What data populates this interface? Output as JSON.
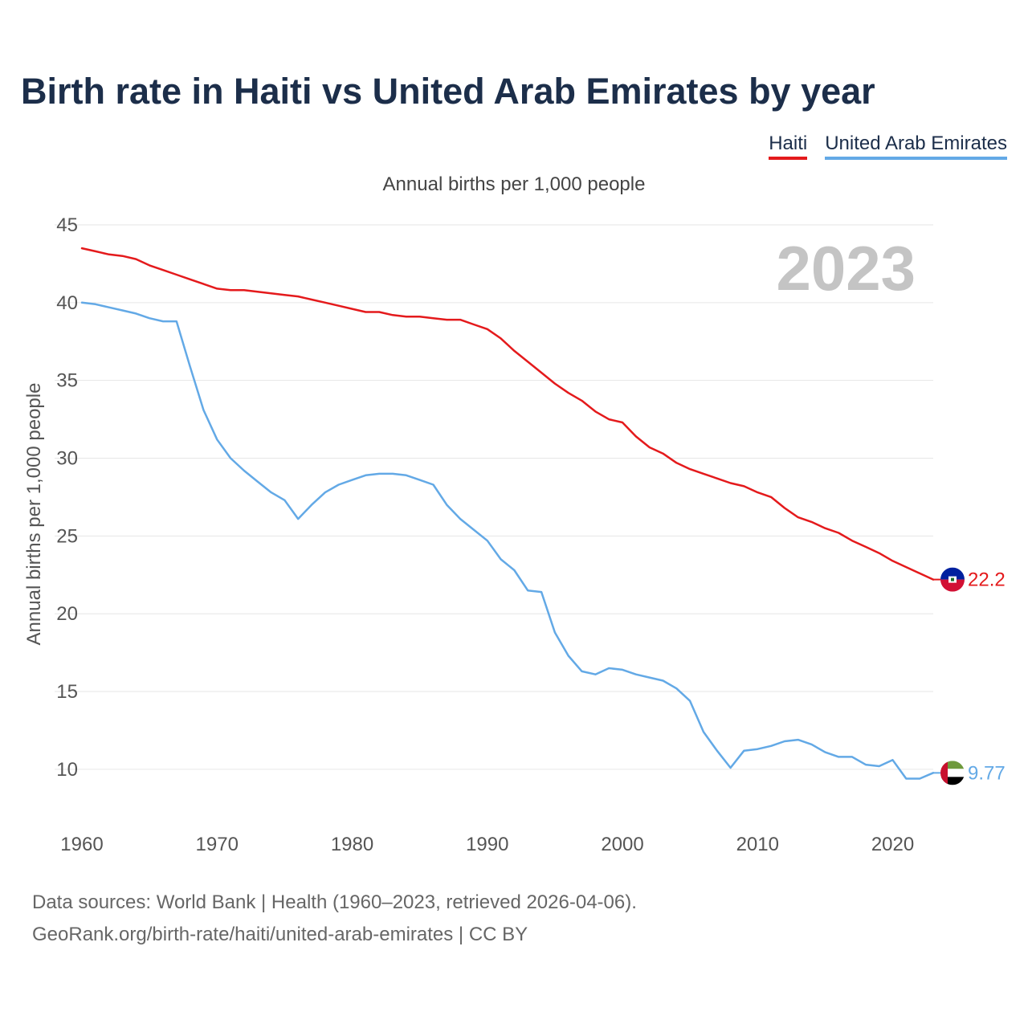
{
  "title": "Birth rate in Haiti vs United Arab Emirates by year",
  "subtitle": "Annual births per 1,000 people",
  "legend": {
    "haiti": "Haiti",
    "uae": "United Arab Emirates"
  },
  "year_label": "2023",
  "footer": {
    "line1": "Data sources: World Bank | Health (1960–2023, retrieved 2026-04-06).",
    "line2": "GeoRank.org/birth-rate/haiti/united-arab-emirates | CC BY"
  },
  "colors": {
    "haiti": "#e41a1c",
    "uae": "#63a9e6",
    "title": "#1c2e4a",
    "grid": "#e6e6e6",
    "year": "#c4c4c4"
  },
  "chart_data": {
    "type": "line",
    "title": "Birth rate in Haiti vs United Arab Emirates by year",
    "xlabel": "",
    "ylabel": "Annual births per 1,000 people",
    "xlim": [
      1960,
      2023
    ],
    "ylim": [
      7,
      45
    ],
    "x_ticks": [
      "1960",
      "1970",
      "1980",
      "1990",
      "2000",
      "2010",
      "2020"
    ],
    "y_ticks": [
      "10",
      "15",
      "20",
      "25",
      "30",
      "35",
      "40",
      "45"
    ],
    "x": [
      1960,
      1961,
      1962,
      1963,
      1964,
      1965,
      1966,
      1967,
      1968,
      1969,
      1970,
      1971,
      1972,
      1973,
      1974,
      1975,
      1976,
      1977,
      1978,
      1979,
      1980,
      1981,
      1982,
      1983,
      1984,
      1985,
      1986,
      1987,
      1988,
      1989,
      1990,
      1991,
      1992,
      1993,
      1994,
      1995,
      1996,
      1997,
      1998,
      1999,
      2000,
      2001,
      2002,
      2003,
      2004,
      2005,
      2006,
      2007,
      2008,
      2009,
      2010,
      2011,
      2012,
      2013,
      2014,
      2015,
      2016,
      2017,
      2018,
      2019,
      2020,
      2021,
      2022,
      2023
    ],
    "series": [
      {
        "name": "Haiti",
        "end_label": "22.2",
        "values": [
          43.5,
          43.3,
          43.1,
          43.0,
          42.8,
          42.4,
          42.1,
          41.8,
          41.5,
          41.2,
          40.9,
          40.8,
          40.8,
          40.7,
          40.6,
          40.5,
          40.4,
          40.2,
          40.0,
          39.8,
          39.6,
          39.4,
          39.4,
          39.2,
          39.1,
          39.1,
          39.0,
          38.9,
          38.9,
          38.6,
          38.3,
          37.7,
          36.9,
          36.2,
          35.5,
          34.8,
          34.2,
          33.7,
          33.0,
          32.5,
          32.3,
          31.4,
          30.7,
          30.3,
          29.7,
          29.3,
          29.0,
          28.7,
          28.4,
          28.2,
          27.8,
          27.5,
          26.8,
          26.2,
          25.9,
          25.5,
          25.2,
          24.7,
          24.3,
          23.9,
          23.4,
          23.0,
          22.6,
          22.2
        ]
      },
      {
        "name": "United Arab Emirates",
        "end_label": "9.77",
        "values": [
          40.0,
          39.9,
          39.7,
          39.5,
          39.3,
          39.0,
          38.8,
          38.8,
          35.9,
          33.1,
          31.2,
          30.0,
          29.2,
          28.5,
          27.8,
          27.3,
          26.1,
          27.0,
          27.8,
          28.3,
          28.6,
          28.9,
          29.0,
          29.0,
          28.9,
          28.6,
          28.3,
          27.0,
          26.1,
          25.4,
          24.7,
          23.5,
          22.8,
          21.5,
          21.4,
          18.8,
          17.3,
          16.3,
          16.1,
          16.5,
          16.4,
          16.1,
          15.9,
          15.7,
          15.2,
          14.4,
          12.4,
          11.2,
          10.1,
          11.2,
          11.3,
          11.5,
          11.8,
          11.9,
          11.6,
          11.1,
          10.8,
          10.8,
          10.3,
          10.2,
          10.6,
          9.4,
          9.4,
          9.77
        ]
      }
    ]
  }
}
